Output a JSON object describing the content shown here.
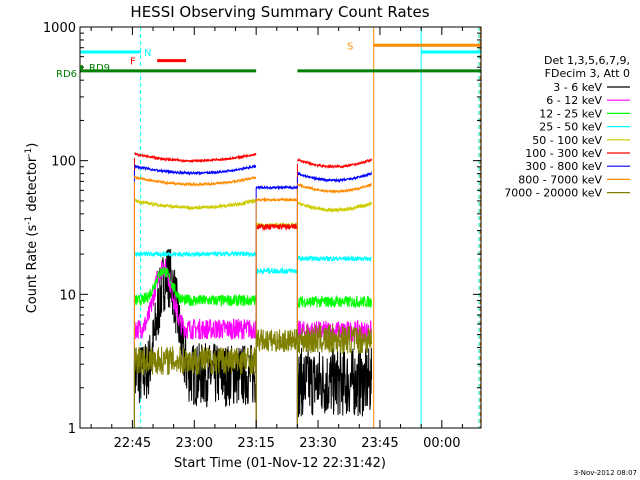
{
  "chart_data": {
    "type": "line",
    "title": "HESSI Observing Summary Count Rates",
    "xlabel": "Start Time (01-Nov-12 22:31:42)",
    "ylabel": "Count Rate (s⁻¹ detector⁻¹)",
    "ylabel_parts": {
      "main": "Count Rate (s",
      "sup1": "-1",
      "mid": " detector",
      "sup2": "-1",
      "end": ")"
    },
    "yscale": "log",
    "ylim": [
      1,
      1000
    ],
    "xlim_minutes": [
      -12.7,
      84.5
    ],
    "x_ticks": [
      "22:45",
      "23:00",
      "23:15",
      "23:30",
      "23:45",
      "00:00"
    ],
    "x_tick_minutes": [
      0,
      15,
      30,
      45,
      60,
      75
    ],
    "y_ticks": [
      "1",
      "10",
      "100",
      "1000"
    ],
    "y_tick_values": [
      1,
      10,
      100,
      1000
    ],
    "legend_header": [
      "Det 1,3,5,6,7,9,",
      "FDecim 3, Att 0"
    ],
    "footer_date": "3-Nov-2012 08:07",
    "series": [
      {
        "name": "3 - 6 keV",
        "color": "#000000",
        "segments": [
          {
            "t0": 0.5,
            "t1": 30,
            "base": 2.5,
            "noise": 0.55,
            "peak": {
              "t": 8.5,
              "v": 14,
              "w": 2.5
            }
          },
          {
            "t0": 40,
            "t1": 58,
            "base": 2.2,
            "noise": 0.6
          }
        ]
      },
      {
        "name": "6 - 12 keV",
        "color": "#ff00ff",
        "segments": [
          {
            "t0": 0.5,
            "t1": 30,
            "base": 5.5,
            "noise": 0.18,
            "peak": {
              "t": 7.5,
              "v": 16,
              "w": 2.5
            }
          },
          {
            "t0": 40,
            "t1": 58,
            "base": 5.3,
            "noise": 0.18
          }
        ]
      },
      {
        "name": "12 - 25 keV",
        "color": "#00ff00",
        "segments": [
          {
            "t0": 0.5,
            "t1": 30,
            "base": 9.0,
            "noise": 0.1,
            "peak": {
              "t": 7.5,
              "v": 15,
              "w": 2.5
            }
          },
          {
            "t0": 40,
            "t1": 58,
            "base": 8.8,
            "noise": 0.1
          }
        ]
      },
      {
        "name": "25 - 50 keV",
        "color": "#00ffff",
        "segments": [
          {
            "t0": 0.5,
            "t1": 30,
            "base": 20,
            "noise": 0.04
          },
          {
            "t0": 30,
            "t1": 40,
            "base": 15,
            "noise": 0.05
          },
          {
            "t0": 40,
            "t1": 58,
            "base": 18.5,
            "noise": 0.04
          }
        ]
      },
      {
        "name": "50 - 100 keV",
        "color": "#cccc00",
        "segments": [
          {
            "t0": 0.5,
            "t1": 30,
            "base": 47,
            "noise": 0.03,
            "shape": 1
          },
          {
            "t0": 30,
            "t1": 40,
            "base": 33,
            "noise": 0.03
          },
          {
            "t0": 40,
            "t1": 58,
            "base": 45,
            "noise": 0.03,
            "shape": 1
          }
        ]
      },
      {
        "name": "100 - 300 keV",
        "color": "#ff0000",
        "segments": [
          {
            "t0": 0.5,
            "t1": 30,
            "base": 105,
            "noise": 0.02,
            "shape": 1
          },
          {
            "t0": 30,
            "t1": 40,
            "base": 32,
            "noise": 0.05
          },
          {
            "t0": 40,
            "t1": 58,
            "base": 95,
            "noise": 0.02,
            "shape": 1
          }
        ]
      },
      {
        "name": "300 - 800 keV",
        "color": "#0000ff",
        "segments": [
          {
            "t0": 0.5,
            "t1": 30,
            "base": 85,
            "noise": 0.02,
            "shape": 1
          },
          {
            "t0": 30,
            "t1": 40,
            "base": 63,
            "noise": 0.02
          },
          {
            "t0": 40,
            "t1": 58,
            "base": 75,
            "noise": 0.02,
            "shape": 1
          }
        ]
      },
      {
        "name": "800 - 7000 keV",
        "color": "#ff8c00",
        "segments": [
          {
            "t0": 0.5,
            "t1": 30,
            "base": 70,
            "noise": 0.02,
            "shape": 1
          },
          {
            "t0": 30,
            "t1": 40,
            "base": 51,
            "noise": 0.02
          },
          {
            "t0": 40,
            "t1": 58,
            "base": 62,
            "noise": 0.02,
            "shape": 1
          }
        ]
      },
      {
        "name": "7000 - 20000 keV",
        "color": "#808000",
        "segments": [
          {
            "t0": 0.5,
            "t1": 30,
            "base": 3.2,
            "noise": 0.25
          },
          {
            "t0": 30,
            "t1": 40,
            "base": 4.5,
            "noise": 0.2
          },
          {
            "t0": 40,
            "t1": 58,
            "base": 4.6,
            "noise": 0.25
          }
        ]
      }
    ],
    "flags": [
      {
        "label": "RD6",
        "color": "#008000",
        "y": 470,
        "t0": -12.7,
        "t1": 84.5,
        "gaps": [
          [
            30,
            40
          ]
        ]
      },
      {
        "label": "RD9",
        "color": "#008000",
        "y": 500,
        "t0": -12.7,
        "t1": -12.2
      },
      {
        "label": "N",
        "color": "#00ffff",
        "y": 650,
        "t0": -12.7,
        "t1": 2
      },
      {
        "label": "F",
        "color": "#ff0000",
        "y": 560,
        "t0": 6,
        "t1": 13
      },
      {
        "label": "S",
        "color": "#ff8c00",
        "y": 730,
        "t0": 58.5,
        "t1": 84.5
      },
      {
        "label": "",
        "color": "#00ffff",
        "y": 650,
        "t0": 70,
        "t1": 84.5
      }
    ],
    "vlines": [
      {
        "t": -12.7,
        "color": "#00ffff",
        "dashed": false
      },
      {
        "t": 2,
        "color": "#00ffff",
        "dashed": true
      },
      {
        "t": 58.5,
        "color": "#ff8c00",
        "dashed": false
      },
      {
        "t": 70,
        "color": "#00ffff",
        "dashed": false
      },
      {
        "t": 84,
        "color": "#00ffff",
        "dashed": true
      },
      {
        "t": 84.3,
        "color": "#ff8c00",
        "dashed": true
      }
    ]
  }
}
